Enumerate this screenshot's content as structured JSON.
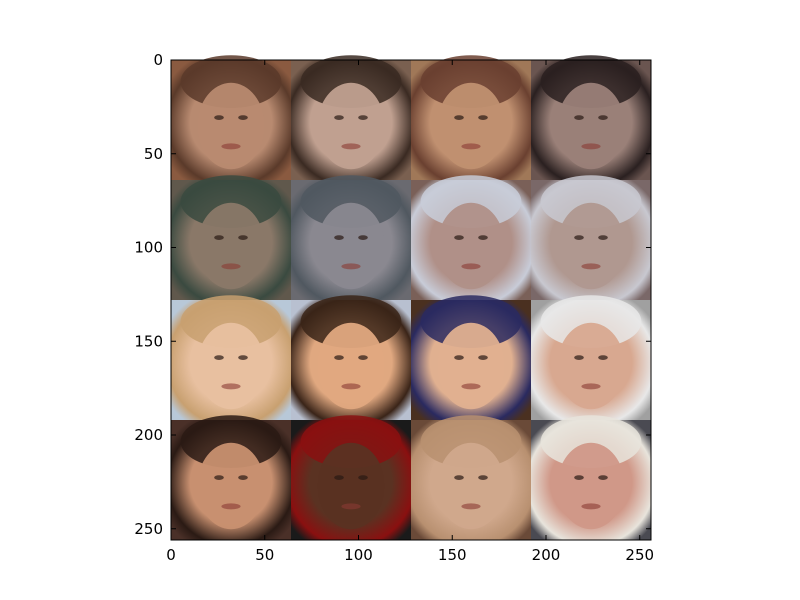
{
  "chart_data": {
    "type": "heatmap",
    "description_visible": "4x4 grid of face images, 64x64 px each, displayed as a 256x256 image",
    "xlim": [
      0,
      256
    ],
    "ylim": [
      256,
      0
    ],
    "x_ticks": [
      0,
      50,
      100,
      150,
      200,
      250
    ],
    "y_ticks": [
      0,
      50,
      100,
      150,
      200,
      250
    ],
    "x_tick_labels": [
      "0",
      "50",
      "100",
      "150",
      "200",
      "250"
    ],
    "y_tick_labels": [
      "0",
      "50",
      "100",
      "150",
      "200",
      "250"
    ],
    "grid": false,
    "tile_size": 64,
    "tiles": [
      {
        "row": 0,
        "col": 0,
        "colors": [
          "#b88a70",
          "#5a3a2a",
          "#8a5a40"
        ]
      },
      {
        "row": 0,
        "col": 1,
        "colors": [
          "#c0a090",
          "#3a2a22",
          "#7a6050"
        ]
      },
      {
        "row": 0,
        "col": 2,
        "colors": [
          "#c09070",
          "#6a4030",
          "#a07858"
        ]
      },
      {
        "row": 0,
        "col": 3,
        "colors": [
          "#9a8078",
          "#2a2020",
          "#6a5550"
        ]
      },
      {
        "row": 1,
        "col": 0,
        "colors": [
          "#8a7868",
          "#3a4a40",
          "#60584c"
        ]
      },
      {
        "row": 1,
        "col": 1,
        "colors": [
          "#8a8890",
          "#505860",
          "#6a6a70"
        ]
      },
      {
        "row": 1,
        "col": 2,
        "colors": [
          "#b09088",
          "#c8ccd8",
          "#7a6058"
        ]
      },
      {
        "row": 1,
        "col": 3,
        "colors": [
          "#b09890",
          "#c8c8d0",
          "#7a6868"
        ]
      },
      {
        "row": 2,
        "col": 0,
        "colors": [
          "#e8c0a0",
          "#c8a070",
          "#b8c8d8"
        ]
      },
      {
        "row": 2,
        "col": 1,
        "colors": [
          "#e0a880",
          "#3a2418",
          "#b8c0d0"
        ]
      },
      {
        "row": 2,
        "col": 2,
        "colors": [
          "#e0b090",
          "#2a2a60",
          "#4a3020"
        ]
      },
      {
        "row": 2,
        "col": 3,
        "colors": [
          "#d8a890",
          "#e8e8e8",
          "#a0a0a0"
        ]
      },
      {
        "row": 3,
        "col": 0,
        "colors": [
          "#c89070",
          "#2a1a14",
          "#4a3028"
        ]
      },
      {
        "row": 3,
        "col": 1,
        "colors": [
          "#5a3222",
          "#8a1010",
          "#1a1a1a"
        ]
      },
      {
        "row": 3,
        "col": 2,
        "colors": [
          "#d0a88c",
          "#b89070",
          "#6a4a38"
        ]
      },
      {
        "row": 3,
        "col": 3,
        "colors": [
          "#d09888",
          "#e8e4dc",
          "#4a4a52"
        ]
      }
    ]
  }
}
